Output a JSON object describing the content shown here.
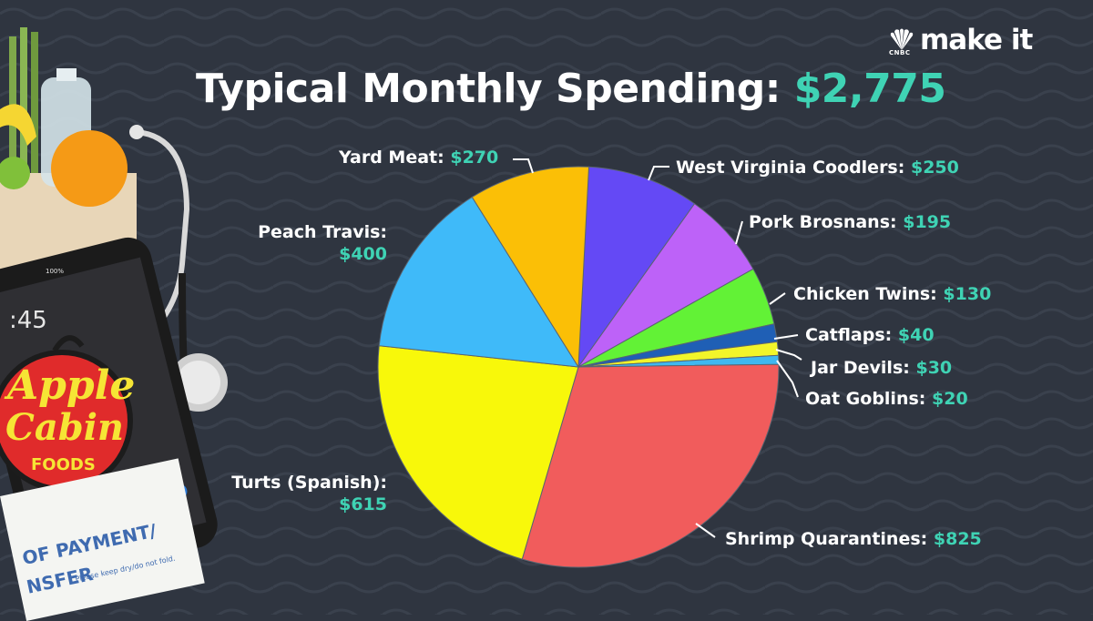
{
  "brand": {
    "name": "make it",
    "network": "CNBC"
  },
  "title": {
    "prefix": "Typical Monthly Spending:",
    "amount": "$2,775"
  },
  "decor": {
    "logo_line1": "Apple",
    "logo_line2": "Cabin",
    "logo_line3": "FOODS",
    "phone_time": ":45",
    "phone_battery": "100%",
    "receipt_line1": "OF PAYMENT/",
    "receipt_line2": "NSFER",
    "receipt_note": "Please keep dry/do not fold."
  },
  "chart_data": {
    "type": "pie",
    "title": "Typical Monthly Spending: $2,775",
    "total": 2775,
    "slices": [
      {
        "label": "West Virginia Coodlers:",
        "display": "$250",
        "value": 250,
        "color": "#6449f5"
      },
      {
        "label": "Pork Brosnans:",
        "display": "$195",
        "value": 195,
        "color": "#bd62f8"
      },
      {
        "label": "Chicken Twins:",
        "display": "$130",
        "value": 130,
        "color": "#62f236"
      },
      {
        "label": "Catflaps:",
        "display": "$40",
        "value": 40,
        "color": "#1f5fb5"
      },
      {
        "label": "Jar Devils:",
        "display": "$30",
        "value": 30,
        "color": "#f2f52a"
      },
      {
        "label": "Oat Goblins:",
        "display": "$20",
        "value": 20,
        "color": "#3fb8f0"
      },
      {
        "label": "Shrimp Quarantines:",
        "display": "$825",
        "value": 825,
        "color": "#f15c5c"
      },
      {
        "label": "Turts (Spanish):",
        "display": "$615",
        "value": 615,
        "color": "#f8f80a"
      },
      {
        "label": "Peach Travis:",
        "display": "$400",
        "value": 400,
        "color": "#3fbaf9"
      },
      {
        "label": "Yard Meat:",
        "display": "$270",
        "value": 270,
        "color": "#fbbf06"
      }
    ],
    "start_slice": "West Virginia Coodlers:",
    "direction": "clockwise",
    "legend": "none"
  }
}
